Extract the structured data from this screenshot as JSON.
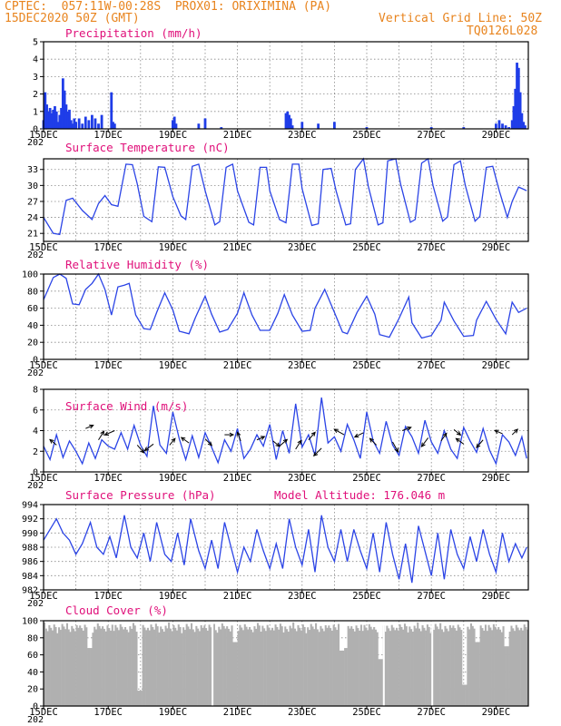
{
  "header": {
    "line1_left": "CPTEC:  057:11W-00:28S  PROX01: ORIXIMINA (PA)",
    "line2_left": "15DEC2020 50Z (GMT)",
    "line2_right": "Vertical Grid Line: 50Z",
    "line3_right": "TQ0126L028",
    "color": "#e8841e"
  },
  "colors": {
    "series": "#2b44e6",
    "bars": "#1f3de8",
    "cloud": "#b0b0b0",
    "title": "#e0107a",
    "grid": "#888888"
  },
  "x_ticks": [
    "15DEC",
    "17DEC",
    "19DEC",
    "21DEC",
    "23DEC",
    "25DEC",
    "27DEC",
    "29DEC"
  ],
  "x_year_fragment": "202",
  "chart_data": [
    {
      "type": "bar",
      "title": "Precipitation (mm/h)",
      "ylim": [
        0,
        5
      ],
      "yticks": [
        "0",
        "1",
        "2",
        "3",
        "4",
        "5"
      ],
      "x_days": [
        0.0,
        0.05,
        0.1,
        0.15,
        0.2,
        0.25,
        0.3,
        0.35,
        0.4,
        0.45,
        0.5,
        0.55,
        0.6,
        0.65,
        0.7,
        0.75,
        0.8,
        0.85,
        0.9,
        0.95,
        1.0,
        1.1,
        1.2,
        1.3,
        1.4,
        1.5,
        1.6,
        1.7,
        1.8,
        2.1,
        2.15,
        2.2,
        4.0,
        4.05,
        4.1,
        4.8,
        5.0,
        5.5,
        7.5,
        7.55,
        7.6,
        7.65,
        7.7,
        8.0,
        8.5,
        9.0,
        10.0,
        12.0,
        13.0,
        14.0,
        14.1,
        14.2,
        14.3,
        14.4,
        14.5,
        14.55,
        14.6,
        14.65,
        14.7,
        14.75,
        14.8,
        14.85,
        14.9
      ],
      "values": [
        0.5,
        2.1,
        1.4,
        1.0,
        1.2,
        0.9,
        1.1,
        1.3,
        1.0,
        0.4,
        0.8,
        1.2,
        2.9,
        2.2,
        1.4,
        1.0,
        1.1,
        0.5,
        0.3,
        0.6,
        0.4,
        0.6,
        0.3,
        0.7,
        0.5,
        0.8,
        0.6,
        0.3,
        0.8,
        2.1,
        0.4,
        0.3,
        0.5,
        0.7,
        0.3,
        0.3,
        0.6,
        0.1,
        0.9,
        1.0,
        0.8,
        0.6,
        0.2,
        0.4,
        0.3,
        0.4,
        0.1,
        0.1,
        0.1,
        0.3,
        0.5,
        0.3,
        0.2,
        0.1,
        0.5,
        1.3,
        2.3,
        3.8,
        3.5,
        2.1,
        0.9,
        0.4,
        0.2
      ]
    },
    {
      "type": "line",
      "title": "Surface Temperature (nC)",
      "ylim": [
        19.5,
        35
      ],
      "yticks": [
        "21",
        "24",
        "27",
        "30",
        "33"
      ],
      "x": [
        0,
        0.3,
        0.5,
        0.7,
        0.9,
        1.2,
        1.5,
        1.7,
        1.9,
        2.1,
        2.3,
        2.55,
        2.75,
        2.9,
        3.1,
        3.35,
        3.55,
        3.75,
        4.0,
        4.25,
        4.4,
        4.6,
        4.8,
        5.0,
        5.3,
        5.45,
        5.65,
        5.85,
        6.0,
        6.35,
        6.5,
        6.7,
        6.9,
        7.0,
        7.3,
        7.5,
        7.7,
        7.9,
        8.0,
        8.3,
        8.5,
        8.65,
        8.9,
        9.05,
        9.35,
        9.5,
        9.65,
        9.9,
        10.05,
        10.35,
        10.5,
        10.65,
        10.9,
        11.05,
        11.35,
        11.5,
        11.7,
        11.9,
        12.05,
        12.35,
        12.5,
        12.7,
        12.9,
        13.05,
        13.35,
        13.5,
        13.7,
        13.9,
        14.1,
        14.35,
        14.5,
        14.7,
        14.85,
        14.95
      ],
      "y": [
        24,
        21,
        20.8,
        27.2,
        27.6,
        25.3,
        23.6,
        26.6,
        28.1,
        26.4,
        26.1,
        34.0,
        33.9,
        30.3,
        24.2,
        23.2,
        33.5,
        33.4,
        27.9,
        24.3,
        23.6,
        33.6,
        34.0,
        29.0,
        22.6,
        23.2,
        33.4,
        34.0,
        29.0,
        23.1,
        22.6,
        33.4,
        33.4,
        29.0,
        23.6,
        23.0,
        34.0,
        34.0,
        29.4,
        22.5,
        22.8,
        33.0,
        33.2,
        29.0,
        22.6,
        22.8,
        33.0,
        35.0,
        29.8,
        22.6,
        23.0,
        34.6,
        35.0,
        30.2,
        23.1,
        23.6,
        34.2,
        35.0,
        30.0,
        23.3,
        24.1,
        33.9,
        34.6,
        30.0,
        23.3,
        24.2,
        33.4,
        33.6,
        29.0,
        24.0,
        27.0,
        29.7,
        29.3,
        29.0
      ]
    },
    {
      "type": "line",
      "title": "Relative Humidity (%)",
      "ylim": [
        0,
        100
      ],
      "yticks": [
        "0",
        "20",
        "40",
        "60",
        "80",
        "100"
      ],
      "x": [
        0,
        0.3,
        0.5,
        0.7,
        0.9,
        1.1,
        1.3,
        1.5,
        1.7,
        1.9,
        2.1,
        2.3,
        2.5,
        2.65,
        2.85,
        3.1,
        3.3,
        3.5,
        3.75,
        4.0,
        4.2,
        4.5,
        4.7,
        5.0,
        5.2,
        5.45,
        5.7,
        6.0,
        6.2,
        6.45,
        6.7,
        7.0,
        7.25,
        7.45,
        7.7,
        8.0,
        8.25,
        8.4,
        8.7,
        9.0,
        9.25,
        9.4,
        9.7,
        10.0,
        10.25,
        10.4,
        10.7,
        11.0,
        11.3,
        11.4,
        11.7,
        12.0,
        12.3,
        12.4,
        12.7,
        13.0,
        13.3,
        13.4,
        13.7,
        14.0,
        14.3,
        14.5,
        14.7,
        14.95
      ],
      "y": [
        70,
        96,
        100,
        95,
        65,
        64,
        82,
        89,
        100,
        82,
        52,
        85,
        87,
        89,
        52,
        36,
        35,
        55,
        78,
        58,
        33,
        30,
        49,
        74,
        53,
        32,
        35,
        54,
        78,
        52,
        34,
        34,
        54,
        76,
        52,
        33,
        34,
        60,
        82,
        55,
        32,
        30,
        55,
        74,
        53,
        29,
        26,
        48,
        73,
        43,
        25,
        28,
        46,
        67,
        45,
        27,
        28,
        46,
        68,
        47,
        30,
        67,
        55,
        60
      ]
    },
    {
      "type": "line",
      "title": "Surface Wind (m/s)",
      "ylim": [
        0,
        8
      ],
      "yticks": [
        "0",
        "2",
        "4",
        "6",
        "8"
      ],
      "x": [
        0,
        0.2,
        0.4,
        0.6,
        0.8,
        1.0,
        1.2,
        1.4,
        1.6,
        1.8,
        2.0,
        2.2,
        2.4,
        2.6,
        2.8,
        3.0,
        3.2,
        3.4,
        3.6,
        3.8,
        4.0,
        4.2,
        4.4,
        4.6,
        4.8,
        5.0,
        5.2,
        5.4,
        5.6,
        5.8,
        6.0,
        6.2,
        6.4,
        6.6,
        6.8,
        7.0,
        7.2,
        7.4,
        7.6,
        7.8,
        8.0,
        8.2,
        8.4,
        8.6,
        8.8,
        9.0,
        9.2,
        9.4,
        9.6,
        9.8,
        10.0,
        10.2,
        10.4,
        10.6,
        10.8,
        11.0,
        11.2,
        11.4,
        11.6,
        11.8,
        12.0,
        12.2,
        12.4,
        12.6,
        12.8,
        13.0,
        13.2,
        13.4,
        13.6,
        13.8,
        14.0,
        14.2,
        14.4,
        14.6,
        14.8,
        14.95
      ],
      "y": [
        2.5,
        1.2,
        3.6,
        1.4,
        3.0,
        2.0,
        0.8,
        2.8,
        1.3,
        3.1,
        2.5,
        2.2,
        3.8,
        2.2,
        4.5,
        2.6,
        1.5,
        6.4,
        2.6,
        1.8,
        5.8,
        3.2,
        1.2,
        3.5,
        1.4,
        3.8,
        2.4,
        0.9,
        3.1,
        2.0,
        4.2,
        1.3,
        2.2,
        3.6,
        2.5,
        4.6,
        1.2,
        4.0,
        1.8,
        6.6,
        2.4,
        3.6,
        1.6,
        7.2,
        2.8,
        3.4,
        2.0,
        4.6,
        3.1,
        1.3,
        5.8,
        3.0,
        1.8,
        4.9,
        2.6,
        1.6,
        4.4,
        3.4,
        1.8,
        5.0,
        2.9,
        1.8,
        4.0,
        2.2,
        1.3,
        4.3,
        3.0,
        1.9,
        4.2,
        2.1,
        0.8,
        3.6,
        2.9,
        1.6,
        3.4,
        1.3
      ]
    },
    {
      "type": "line",
      "title": "Surface Pressure (hPa)",
      "annotation": "Model Altitude: 176.046  m",
      "ylim": [
        982,
        994
      ],
      "yticks": [
        "982",
        "984",
        "986",
        "988",
        "990",
        "992",
        "994"
      ],
      "x": [
        0,
        0.2,
        0.4,
        0.6,
        0.8,
        1.0,
        1.2,
        1.45,
        1.65,
        1.85,
        2.05,
        2.25,
        2.5,
        2.7,
        2.9,
        3.1,
        3.3,
        3.5,
        3.75,
        3.95,
        4.15,
        4.35,
        4.55,
        4.8,
        5.0,
        5.2,
        5.4,
        5.6,
        5.8,
        6.0,
        6.2,
        6.4,
        6.6,
        6.8,
        7.0,
        7.2,
        7.4,
        7.6,
        7.8,
        8.0,
        8.2,
        8.4,
        8.6,
        8.8,
        9.0,
        9.2,
        9.4,
        9.6,
        9.8,
        10.0,
        10.2,
        10.4,
        10.6,
        10.8,
        11.0,
        11.2,
        11.4,
        11.6,
        11.8,
        12.0,
        12.2,
        12.4,
        12.6,
        12.8,
        13.0,
        13.2,
        13.4,
        13.6,
        13.8,
        14.0,
        14.2,
        14.4,
        14.6,
        14.8,
        14.95
      ],
      "y": [
        989,
        990.5,
        992,
        990,
        989,
        987,
        988.5,
        991.5,
        988,
        987,
        989.5,
        986.5,
        992.5,
        988,
        986.5,
        990,
        986,
        991.5,
        987,
        986,
        990,
        985.5,
        992,
        987.5,
        985,
        989,
        985,
        991.5,
        988,
        984.5,
        988,
        986,
        990.5,
        987.5,
        985,
        988.5,
        985,
        992,
        988,
        985.5,
        990.5,
        984.5,
        992.5,
        988,
        986,
        990.5,
        986,
        990.5,
        987.5,
        985,
        990,
        984.5,
        991.5,
        987,
        983.5,
        988.5,
        983,
        991,
        987.5,
        984,
        990,
        983.5,
        990.5,
        987,
        985,
        989.5,
        986,
        990.5,
        987,
        984.5,
        990,
        986,
        988.5,
        986.5,
        988
      ]
    },
    {
      "type": "bar",
      "title": "Cloud Cover (%)",
      "ylim": [
        0,
        100
      ],
      "yticks": [
        "0",
        "20",
        "40",
        "60",
        "80",
        "100"
      ],
      "x_days": [
        1.4,
        2.95,
        5.9,
        9.2,
        9.3,
        10.4,
        13.0,
        13.4,
        14.3
      ],
      "dips": [
        68,
        18,
        75,
        65,
        68,
        55,
        25,
        75,
        70
      ],
      "base_level": 98
    }
  ]
}
